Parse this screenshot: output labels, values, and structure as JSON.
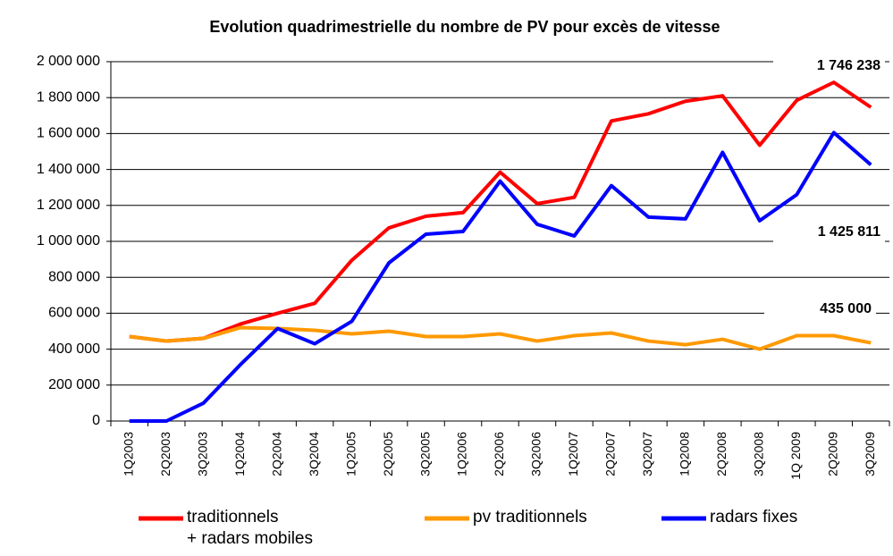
{
  "chart_data": {
    "type": "line",
    "title": "Evolution quadrimestrielle du nombre de PV pour excès de vitesse",
    "categories": [
      "1Q2003",
      "2Q2003",
      "3Q2003",
      "1Q2004",
      "2Q2004",
      "3Q2004",
      "1Q2005",
      "2Q2005",
      "3Q2005",
      "1Q2006",
      "2Q2006",
      "3Q2006",
      "1Q2007",
      "2Q2007",
      "3Q2007",
      "1Q2008",
      "2Q2008",
      "3Q2008",
      "1Q 2009",
      "2Q2009",
      "3Q2009"
    ],
    "series": [
      {
        "name": "traditionnels\n+ radars mobiles",
        "color": "#ff0000",
        "values": [
          470000,
          445000,
          460000,
          540000,
          600000,
          655000,
          895000,
          1075000,
          1140000,
          1160000,
          1385000,
          1210000,
          1245000,
          1670000,
          1710000,
          1780000,
          1810000,
          1535000,
          1785000,
          1885000,
          1746238
        ]
      },
      {
        "name": "pv traditionnels",
        "color": "#ff9900",
        "values": [
          470000,
          445000,
          460000,
          520000,
          515000,
          505000,
          485000,
          500000,
          470000,
          470000,
          485000,
          445000,
          475000,
          490000,
          445000,
          425000,
          455000,
          400000,
          475000,
          475000,
          435000
        ]
      },
      {
        "name": "radars fixes",
        "color": "#0000ff",
        "values": [
          0,
          0,
          100000,
          315000,
          515000,
          430000,
          555000,
          880000,
          1040000,
          1055000,
          1335000,
          1095000,
          1030000,
          1310000,
          1135000,
          1125000,
          1495000,
          1115000,
          1260000,
          1605000,
          1425811
        ]
      }
    ],
    "annotations": [
      "1 746 238",
      "1 425 811",
      "435 000"
    ],
    "ylim": [
      0,
      2000000
    ],
    "yticks": [
      0,
      {
        "value": 200000,
        "label": "200 000"
      },
      {
        "value": 400000,
        "label": "400 000"
      },
      {
        "value": 600000,
        "label": "600 000"
      },
      {
        "value": 800000,
        "label": "800 000"
      },
      {
        "value": 1000000,
        "label": "1 000 000"
      },
      {
        "value": 1200000,
        "label": "1 200 000"
      },
      {
        "value": 1400000,
        "label": "1 400 000"
      },
      {
        "value": 1600000,
        "label": "1 600 000"
      },
      {
        "value": 1800000,
        "label": "1 800 000"
      },
      {
        "value": 2000000,
        "label": "2 000 000"
      }
    ],
    "grid": true,
    "legend": "bottom"
  }
}
